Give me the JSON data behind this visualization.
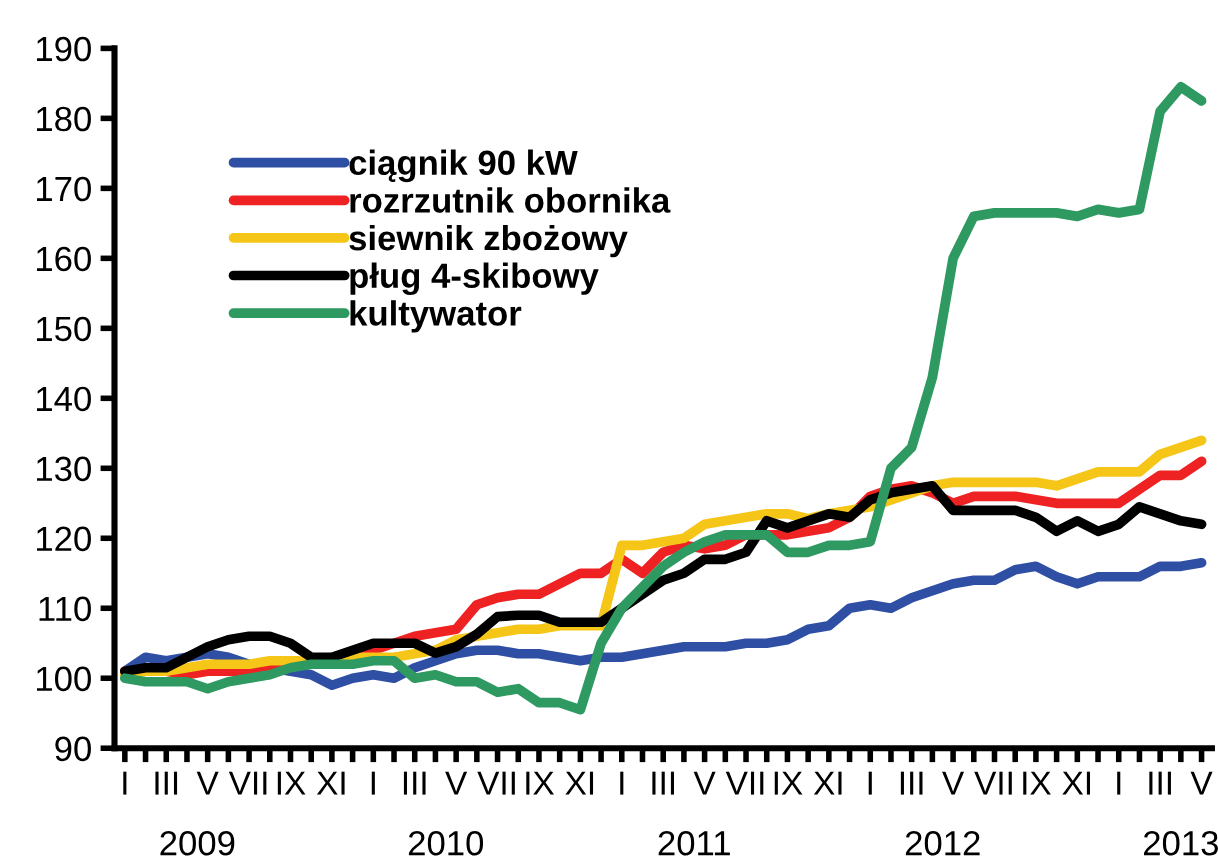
{
  "chart_data": {
    "type": "line",
    "categories": [
      "I",
      null,
      "III",
      null,
      "V",
      null,
      "VII",
      null,
      "IX",
      null,
      "XI",
      null,
      "I",
      null,
      "III",
      null,
      "V",
      null,
      "VII",
      null,
      "IX",
      null,
      "XI",
      null,
      "I",
      null,
      "III",
      null,
      "V",
      null,
      "VII",
      null,
      "IX",
      null,
      "XI",
      null,
      "I",
      null,
      "III",
      null,
      "V",
      null,
      "VII",
      null,
      "IX",
      null,
      "XI",
      null,
      "I",
      null,
      "III",
      null,
      "V"
    ],
    "series": [
      {
        "name": "ciągnik 90 kW",
        "color": "#2e4fa3",
        "values": [
          101,
          103,
          102.5,
          103,
          103.5,
          103,
          102,
          101.5,
          101,
          100.5,
          99,
          100,
          100.5,
          100,
          101.5,
          102.5,
          103.5,
          104,
          104,
          103.5,
          103.5,
          103,
          102.5,
          103,
          103,
          103.5,
          104,
          104.5,
          104.5,
          104.5,
          105,
          105,
          105.5,
          107,
          107.5,
          110,
          110.5,
          110,
          111.5,
          112.5,
          113.5,
          114,
          114,
          115.5,
          116,
          114.5,
          113.5,
          114.5,
          114.5,
          114.5,
          116,
          116,
          116.5
        ]
      },
      {
        "name": "rozrzutnik obornika",
        "color": "#ee2222",
        "values": [
          101,
          101,
          101,
          100.5,
          101,
          101,
          101,
          101.5,
          102,
          null,
          null,
          103,
          104,
          105,
          106,
          106.5,
          107,
          110.5,
          111.5,
          112,
          112,
          113.5,
          115,
          115,
          117,
          115,
          118,
          119,
          118.5,
          119,
          120.5,
          120.5,
          120.5,
          121,
          121.5,
          123,
          126,
          127,
          127.5,
          126.5,
          125,
          126,
          126,
          126,
          125.5,
          125,
          125,
          125,
          125,
          127,
          129,
          129,
          131
        ]
      },
      {
        "name": "siewnik zbożowy",
        "color": "#f5c518",
        "values": [
          100.5,
          101,
          101,
          101.5,
          102,
          102,
          102,
          102.5,
          102.5,
          102.5,
          103,
          103,
          103,
          103,
          103.5,
          104,
          105.5,
          106,
          106.5,
          107,
          107,
          107.5,
          107.5,
          107.5,
          119,
          119,
          119.5,
          120,
          122,
          122.5,
          123,
          123.5,
          123.5,
          122.8,
          123.5,
          124,
          124.5,
          125.5,
          126.5,
          127.5,
          128,
          128,
          128,
          128,
          128,
          127.5,
          128.5,
          129.5,
          129.5,
          129.5,
          132,
          133,
          134
        ]
      },
      {
        "name": "pług 4-skibowy",
        "color": "#000000",
        "values": [
          101,
          101.5,
          101.5,
          103,
          104.5,
          105.5,
          106,
          106,
          105,
          103,
          103,
          104,
          105,
          105,
          105,
          103.6,
          104.5,
          106.3,
          108.8,
          109,
          109,
          108,
          108,
          108,
          110,
          112,
          114,
          115,
          117,
          117,
          118,
          122.5,
          121.5,
          122.5,
          123.5,
          123,
          125.5,
          126.5,
          127,
          127.5,
          124,
          124,
          124,
          124,
          123,
          121,
          122.5,
          121,
          122,
          124.5,
          123.5,
          122.5,
          122
        ]
      },
      {
        "name": "kultywator",
        "color": "#2e9960",
        "values": [
          100,
          99.5,
          99.5,
          99.5,
          98.5,
          99.5,
          100,
          100.5,
          101.5,
          102,
          102,
          102,
          102.5,
          102.5,
          100,
          100.5,
          99.5,
          99.5,
          98,
          98.5,
          96.5,
          96.5,
          95.5,
          105,
          110,
          113,
          116,
          118,
          119.5,
          120.5,
          120.5,
          120.5,
          118,
          118,
          119,
          119,
          119.5,
          130,
          133,
          143,
          160,
          166,
          166.5,
          166.5,
          166.5,
          166.5,
          166,
          167,
          166.5,
          167,
          181,
          184.5,
          182.5
        ]
      }
    ],
    "ylim": [
      90,
      190
    ],
    "yticks": [
      90,
      100,
      110,
      120,
      130,
      140,
      150,
      160,
      170,
      180,
      190
    ],
    "legend": "top left",
    "annotations": [
      "2009",
      "2010",
      "2011",
      "2012",
      "2013"
    ]
  }
}
